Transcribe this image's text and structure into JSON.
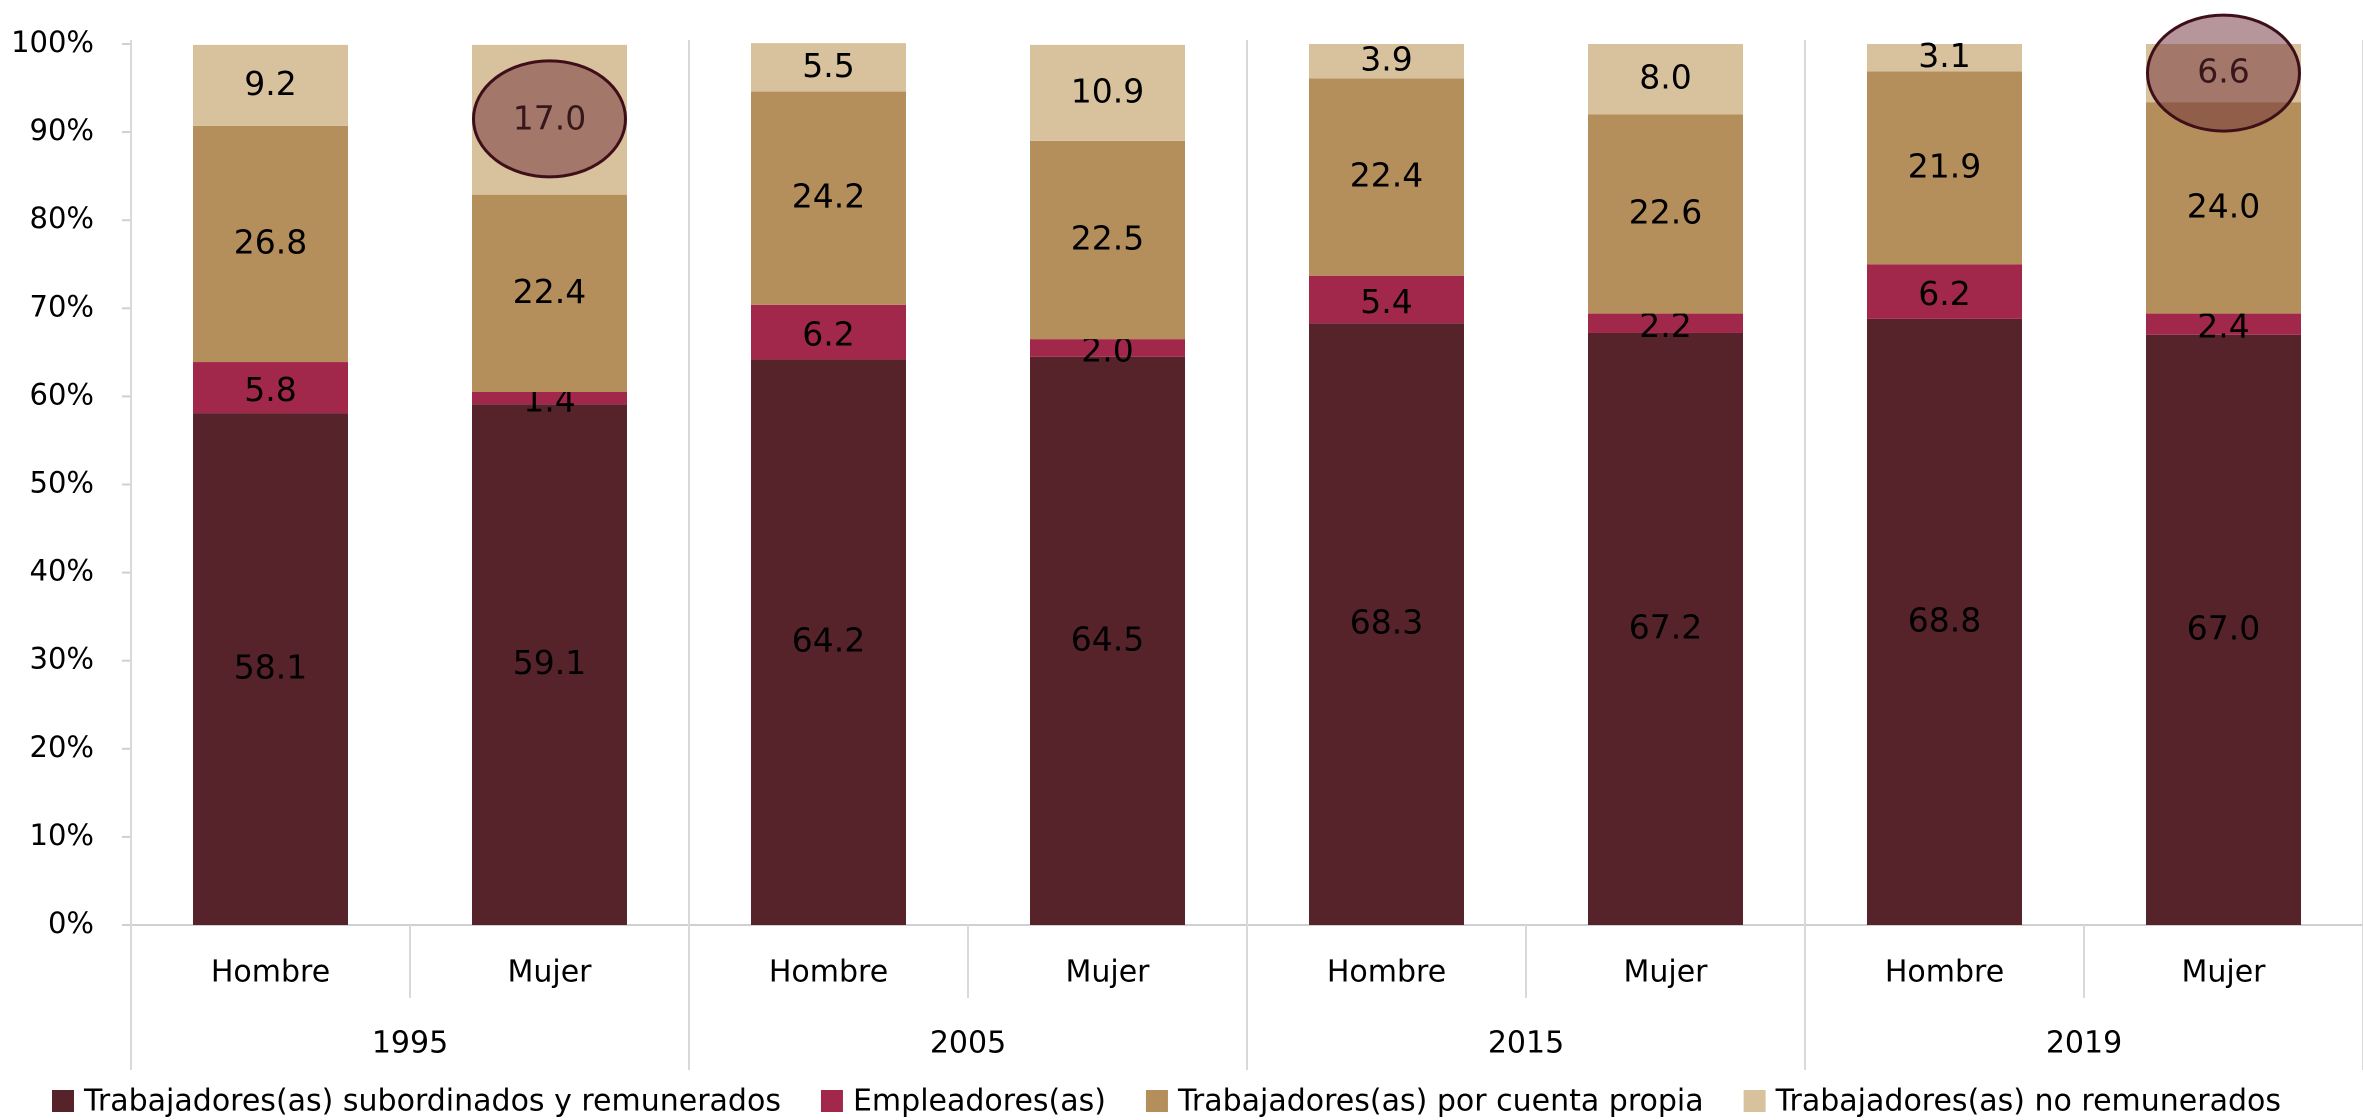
{
  "chart_data": {
    "type": "stacked-bar",
    "categories": [
      "Hombre",
      "Mujer",
      "Hombre",
      "Mujer",
      "Hombre",
      "Mujer",
      "Hombre",
      "Mujer"
    ],
    "x_groups": [
      "1995",
      "2005",
      "2015",
      "2019"
    ],
    "series": [
      {
        "name": "Trabajadores(as) subordinados y remunerados",
        "color": "#56232b",
        "values": [
          58.1,
          59.1,
          64.2,
          64.5,
          68.3,
          67.2,
          68.8,
          67.0
        ],
        "value_labels": [
          "58.1",
          "59.1",
          "64.2",
          "64.5",
          "68.3",
          "67.2",
          "68.8",
          "67.0"
        ]
      },
      {
        "name": "Empleadores(as)",
        "color": "#a2284b",
        "values": [
          5.8,
          1.4,
          6.2,
          2.0,
          5.4,
          2.2,
          6.2,
          2.4
        ],
        "value_labels": [
          "5.8",
          "1.4",
          "6.2",
          "2.0",
          "5.4",
          "2.2",
          "6.2",
          "2.4"
        ]
      },
      {
        "name": "Trabajadores(as) por cuenta propia",
        "color": "#b48f5c",
        "values": [
          26.8,
          22.4,
          24.2,
          22.5,
          22.4,
          22.6,
          21.9,
          24.0
        ],
        "value_labels": [
          "26.8",
          "22.4",
          "24.2",
          "22.5",
          "22.4",
          "22.6",
          "21.9",
          "24.0"
        ]
      },
      {
        "name": "Trabajadores(as) no remunerados",
        "color": "#d8c29d",
        "values": [
          9.2,
          17.0,
          5.5,
          10.9,
          3.9,
          8.0,
          3.1,
          6.6
        ],
        "value_labels": [
          "9.2",
          "17.0",
          "5.5",
          "10.9",
          "3.9",
          "8.0",
          "3.1",
          "6.6"
        ]
      }
    ],
    "ylim": [
      0,
      100
    ],
    "yticks": [
      {
        "value": 0,
        "label": "0%"
      },
      {
        "value": 10,
        "label": "10%"
      },
      {
        "value": 20,
        "label": "20%"
      },
      {
        "value": 30,
        "label": "30%"
      },
      {
        "value": 40,
        "label": "40%"
      },
      {
        "value": 50,
        "label": "50%"
      },
      {
        "value": 60,
        "label": "60%"
      },
      {
        "value": 70,
        "label": "70%"
      },
      {
        "value": 80,
        "label": "80%"
      },
      {
        "value": 90,
        "label": "90%"
      },
      {
        "value": 100,
        "label": "100%"
      }
    ],
    "legend": "bottom"
  }
}
